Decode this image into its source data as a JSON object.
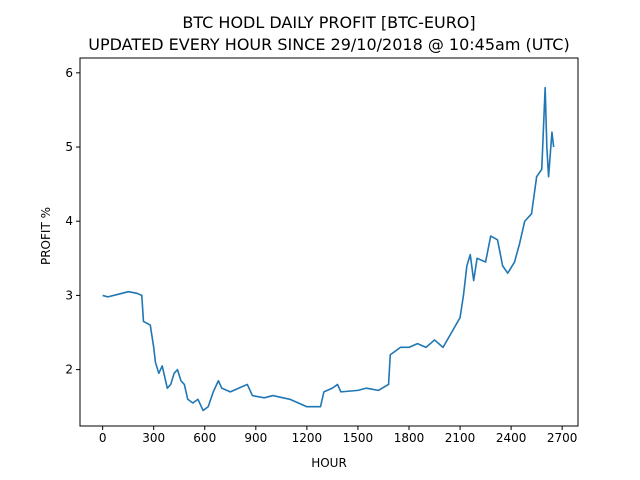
{
  "chart_data": {
    "type": "line",
    "title_lines": [
      "BTC HODL DAILY PROFIT [BTC-EURO]",
      "UPDATED EVERY HOUR SINCE 29/10/2018 @ 10:45am (UTC)"
    ],
    "xlabel": "HOUR",
    "ylabel": "PROFIT %",
    "xlim": [
      -133,
      2793
    ],
    "ylim": [
      1.24,
      6.2
    ],
    "xticks": [
      0,
      300,
      600,
      900,
      1200,
      1500,
      1800,
      2100,
      2400,
      2700
    ],
    "yticks": [
      2,
      3,
      4,
      5,
      6
    ],
    "series": [
      {
        "name": "profit",
        "color": "#1f77b4",
        "x": [
          0,
          30,
          100,
          150,
          200,
          230,
          240,
          280,
          300,
          310,
          330,
          350,
          380,
          400,
          420,
          440,
          460,
          480,
          500,
          530,
          560,
          590,
          620,
          650,
          680,
          700,
          750,
          800,
          850,
          880,
          950,
          1000,
          1100,
          1150,
          1200,
          1280,
          1300,
          1350,
          1380,
          1400,
          1500,
          1550,
          1620,
          1680,
          1690,
          1750,
          1800,
          1850,
          1900,
          1950,
          2000,
          2050,
          2100,
          2120,
          2140,
          2160,
          2180,
          2200,
          2250,
          2280,
          2320,
          2350,
          2380,
          2420,
          2450,
          2480,
          2520,
          2550,
          2580,
          2600,
          2610,
          2620,
          2640,
          2650
        ],
        "values": [
          3.0,
          2.98,
          3.02,
          3.05,
          3.03,
          3.0,
          2.65,
          2.6,
          2.3,
          2.1,
          1.95,
          2.05,
          1.75,
          1.8,
          1.95,
          2.0,
          1.85,
          1.8,
          1.6,
          1.55,
          1.6,
          1.45,
          1.5,
          1.7,
          1.85,
          1.75,
          1.7,
          1.75,
          1.8,
          1.65,
          1.62,
          1.65,
          1.6,
          1.55,
          1.5,
          1.5,
          1.7,
          1.75,
          1.8,
          1.7,
          1.72,
          1.75,
          1.72,
          1.8,
          2.2,
          2.3,
          2.3,
          2.35,
          2.3,
          2.4,
          2.3,
          2.5,
          2.7,
          3.0,
          3.4,
          3.55,
          3.2,
          3.5,
          3.45,
          3.8,
          3.75,
          3.4,
          3.3,
          3.45,
          3.7,
          4.0,
          4.1,
          4.6,
          4.7,
          5.8,
          5.0,
          4.6,
          5.2,
          5.0
        ]
      }
    ]
  }
}
